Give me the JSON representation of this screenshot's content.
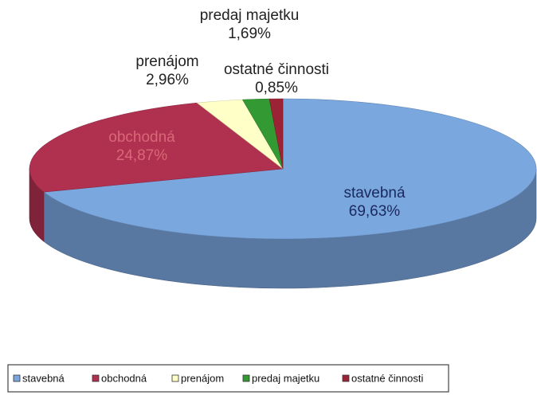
{
  "chart_data": {
    "type": "pie3d",
    "categories": [
      "stavebná",
      "obchodná",
      "prenájom",
      "predaj majetku",
      "ostatné činnosti"
    ],
    "values": [
      69.63,
      24.87,
      2.96,
      1.69,
      0.85
    ],
    "value_labels": [
      "69,63%",
      "24,87%",
      "2,96%",
      "1,69%",
      "0,85%"
    ],
    "colors": [
      "#7ba7df",
      "#b03050",
      "#ffffc8",
      "#339933",
      "#9b2335"
    ],
    "legend": "bottom"
  }
}
